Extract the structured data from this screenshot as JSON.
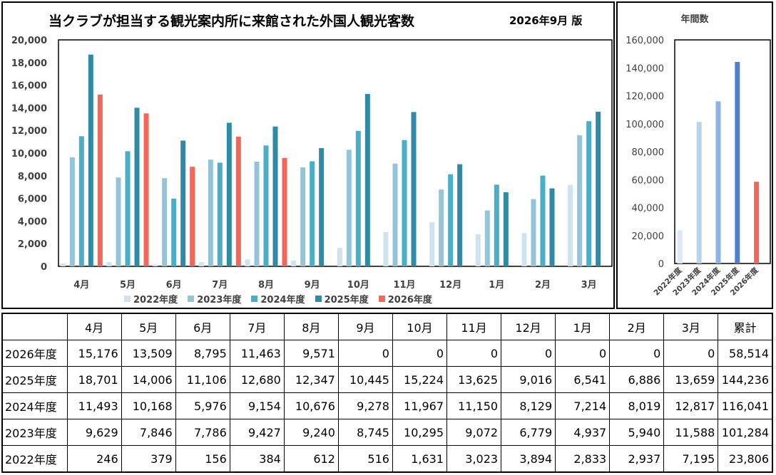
{
  "chart_data": [
    {
      "type": "bar",
      "title": "当クラブが担当する観光案内所に来館された外国人観光客数",
      "edition": "2026年9月 版",
      "categories": [
        "4月",
        "5月",
        "6月",
        "7月",
        "8月",
        "9月",
        "10月",
        "11月",
        "12月",
        "1月",
        "2月",
        "3月"
      ],
      "ylim": [
        0,
        20000
      ],
      "yticks": [
        "0",
        "2,000",
        "4,000",
        "6,000",
        "8,000",
        "10,000",
        "12,000",
        "14,000",
        "16,000",
        "18,000",
        "20,000"
      ],
      "legend_position": "bottom",
      "series": [
        {
          "name": "2022年度",
          "color": "#cfe3ef",
          "values": [
            246,
            379,
            156,
            384,
            612,
            516,
            1631,
            3023,
            3894,
            2833,
            2937,
            7195
          ]
        },
        {
          "name": "2023年度",
          "color": "#93c4d8",
          "values": [
            9629,
            7846,
            7786,
            9427,
            9240,
            8745,
            10295,
            9072,
            6779,
            4937,
            5940,
            11588
          ]
        },
        {
          "name": "2024年度",
          "color": "#4aaec6",
          "values": [
            11493,
            10168,
            5976,
            9154,
            10676,
            9278,
            11967,
            11150,
            8129,
            7214,
            8019,
            12817
          ]
        },
        {
          "name": "2025年度",
          "color": "#2f8aa6",
          "values": [
            18701,
            14006,
            11106,
            12680,
            12347,
            10445,
            15224,
            13625,
            9016,
            6541,
            6886,
            13659
          ]
        },
        {
          "name": "2026年度",
          "color": "#f4655a",
          "values": [
            15176,
            13509,
            8795,
            11463,
            9571,
            0,
            0,
            0,
            0,
            0,
            0,
            0
          ]
        }
      ]
    },
    {
      "type": "bar",
      "title": "年間数",
      "categories": [
        "2022年度",
        "2023年度",
        "2024年度",
        "2025年度",
        "2026年度"
      ],
      "values": [
        23806,
        101284,
        116041,
        144236,
        58514
      ],
      "colors": [
        "#dde9f6",
        "#b9d3ee",
        "#8eb3e3",
        "#4f7fcc",
        "#f4655a"
      ],
      "ylim": [
        0,
        160000
      ],
      "yticks": [
        "0",
        "20,000",
        "40,000",
        "60,000",
        "80,000",
        "100,000",
        "120,000",
        "140,000",
        "160,000"
      ]
    }
  ],
  "table": {
    "headers": [
      "4月",
      "5月",
      "6月",
      "7月",
      "8月",
      "9月",
      "10月",
      "11月",
      "12月",
      "1月",
      "2月",
      "3月",
      "累計"
    ],
    "rows": [
      {
        "label": "2026年度",
        "cells": [
          "15,176",
          "13,509",
          "8,795",
          "11,463",
          "9,571",
          "0",
          "0",
          "0",
          "0",
          "0",
          "0",
          "0",
          "58,514"
        ]
      },
      {
        "label": "2025年度",
        "cells": [
          "18,701",
          "14,006",
          "11,106",
          "12,680",
          "12,347",
          "10,445",
          "15,224",
          "13,625",
          "9,016",
          "6,541",
          "6,886",
          "13,659",
          "144,236"
        ]
      },
      {
        "label": "2024年度",
        "cells": [
          "11,493",
          "10,168",
          "5,976",
          "9,154",
          "10,676",
          "9,278",
          "11,967",
          "11,150",
          "8,129",
          "7,214",
          "8,019",
          "12,817",
          "116,041"
        ]
      },
      {
        "label": "2023年度",
        "cells": [
          "9,629",
          "7,846",
          "7,786",
          "9,427",
          "9,240",
          "8,745",
          "10,295",
          "9,072",
          "6,779",
          "4,937",
          "5,940",
          "11,588",
          "101,284"
        ]
      },
      {
        "label": "2022年度",
        "cells": [
          "246",
          "379",
          "156",
          "384",
          "612",
          "516",
          "1,631",
          "3,023",
          "3,894",
          "2,833",
          "2,937",
          "7,195",
          "23,806"
        ]
      }
    ]
  }
}
